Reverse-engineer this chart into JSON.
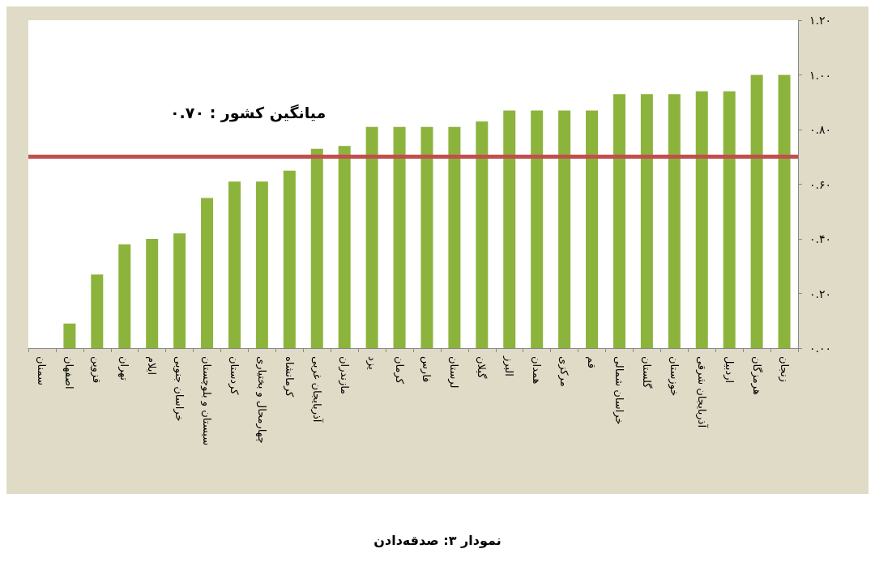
{
  "chart_data": {
    "type": "bar",
    "title": "نمودار ۳: صدقه‌دادن",
    "categories": [
      "سمنان",
      "اصفهان",
      "قزوین",
      "تهران",
      "ایلام",
      "خراسان جنوبی",
      "سیستان و بلوچستان",
      "کردستان",
      "چهارمحال و بختیاری",
      "کرمانشاه",
      "آذربایجان غربی",
      "مازندران",
      "یزد",
      "کرمان",
      "فارس",
      "لرستان",
      "گیلان",
      "البرز",
      "همدان",
      "مرکزی",
      "قم",
      "خراسان شمالی",
      "گلستان",
      "خوزستان",
      "آذربایجان شرقی",
      "اردبیل",
      "هرمزگان",
      "زنجان"
    ],
    "values": [
      0,
      0.09,
      0.27,
      0.38,
      0.4,
      0.42,
      0.55,
      0.61,
      0.61,
      0.65,
      0.73,
      0.74,
      0.81,
      0.81,
      0.81,
      0.81,
      0.83,
      0.87,
      0.87,
      0.87,
      0.87,
      0.93,
      0.93,
      0.93,
      0.94,
      0.94,
      1.0,
      1.0
    ],
    "color": "#8cb43c",
    "ylim": [
      0,
      1.2
    ],
    "yticks": [
      {
        "value": 0,
        "label": "۰.۰۰"
      },
      {
        "value": 0.2,
        "label": "۰.۲۰"
      },
      {
        "value": 0.4,
        "label": "۰.۴۰"
      },
      {
        "value": 0.6,
        "label": "۰.۶۰"
      },
      {
        "value": 0.8,
        "label": "۰.۸۰"
      },
      {
        "value": 1.0,
        "label": "۱.۰۰"
      },
      {
        "value": 1.2,
        "label": "۱.۲۰"
      }
    ],
    "ref_lines": [
      {
        "axis": "y",
        "value": 0.7,
        "label": "میانگین کشور : ۰.۷۰",
        "color": "#c0504d"
      }
    ],
    "grid": false
  }
}
